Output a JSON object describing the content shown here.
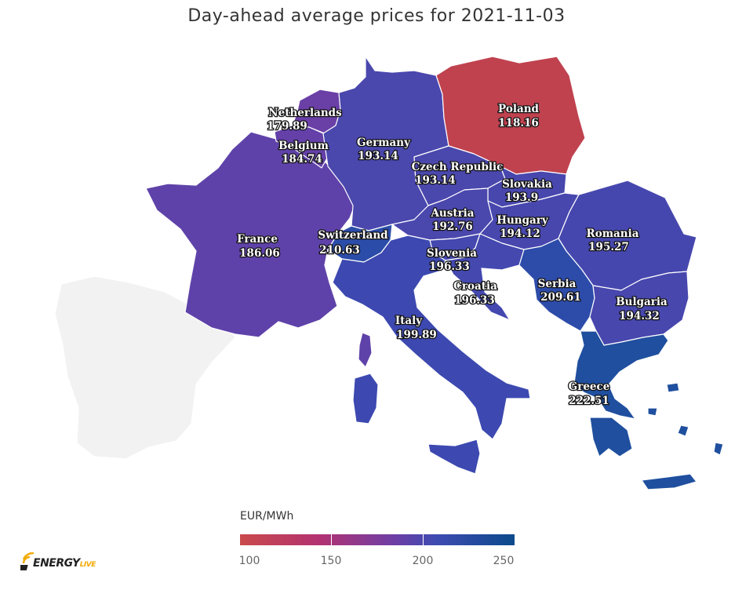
{
  "title": "Day-ahead average prices for 2021-11-03",
  "legend": {
    "title": "EUR/MWh",
    "ticks": [
      "100",
      "150",
      "200",
      "250"
    ],
    "min": 100,
    "max": 250,
    "colors": [
      "#c84a4a",
      "#b33272",
      "#6b3fa6",
      "#3e4bb1",
      "#0b4a8c"
    ]
  },
  "countries": {
    "poland": {
      "name": "Poland",
      "value": "118.16",
      "color": "#c0424f"
    },
    "netherlands": {
      "name": "Netherlands",
      "value": "179.89",
      "color": "#6a3fa6"
    },
    "belgium": {
      "name": "Belgium",
      "value": "184.74",
      "color": "#6440a8"
    },
    "germany": {
      "name": "Germany",
      "value": "193.14",
      "color": "#4a47ad"
    },
    "czech": {
      "name": "Czech Republic",
      "value": "193.14",
      "color": "#4a47ad"
    },
    "slovakia": {
      "name": "Slovakia",
      "value": "193.9",
      "color": "#4847ae"
    },
    "austria": {
      "name": "Austria",
      "value": "192.76",
      "color": "#4a47ad"
    },
    "hungary": {
      "name": "Hungary",
      "value": "194.12",
      "color": "#4847ae"
    },
    "romania": {
      "name": "Romania",
      "value": "195.27",
      "color": "#4647ae"
    },
    "france": {
      "name": "France",
      "value": "186.06",
      "color": "#5f42a9"
    },
    "switzerland": {
      "name": "Switzerland",
      "value": "210.63",
      "color": "#2b4da9"
    },
    "slovenia": {
      "name": "Slovenia",
      "value": "196.33",
      "color": "#4448af"
    },
    "croatia": {
      "name": "Croatia",
      "value": "196.33",
      "color": "#4448af"
    },
    "serbia": {
      "name": "Serbia",
      "value": "209.61",
      "color": "#2d4caa"
    },
    "bulgaria": {
      "name": "Bulgaria",
      "value": "194.32",
      "color": "#4847ae"
    },
    "italy": {
      "name": "Italy",
      "value": "199.89",
      "color": "#3d49b0"
    },
    "greece": {
      "name": "Greece",
      "value": "222.51",
      "color": "#1f4f9e"
    }
  },
  "no_data_color": "#f2f2f2",
  "logo": {
    "text": "ENERGY",
    "suffix": "LIVE"
  }
}
